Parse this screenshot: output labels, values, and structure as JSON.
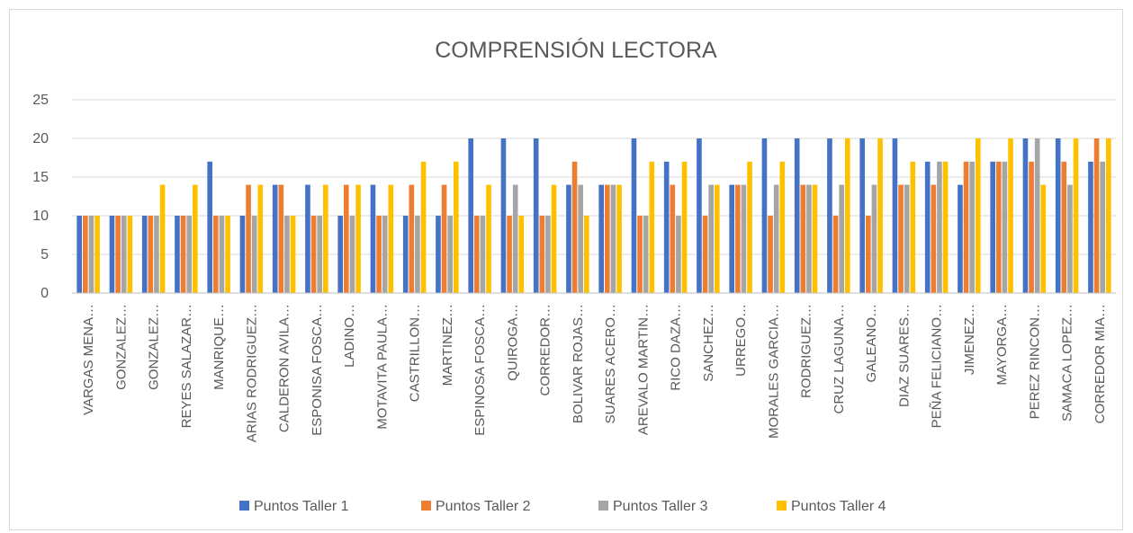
{
  "chart_data": {
    "type": "bar",
    "title": "COMPRENSIÓN LECTORA",
    "categories": [
      "VARGAS MENA…",
      "GONZALEZ…",
      "GONZALEZ…",
      "REYES SALAZAR…",
      "MANRIQUE…",
      "ARIAS RODRIGUEZ…",
      "CALDERON AVILA…",
      "ESPONISA FOSCA…",
      "LADINO…",
      "MOTAVITA PAULA…",
      "CASTRILLON…",
      "MARTINEZ…",
      "ESPINOSA FOSCA…",
      "QUIROGA…",
      "CORREDOR…",
      "BOLIVAR ROJAS…",
      "SUARES ACERO…",
      "AREVALO MARTIN…",
      "RICO DAZA…",
      "SANCHEZ…",
      "URREGO…",
      "MORALES GARCIA…",
      "RODRIGUEZ…",
      "CRUZ LAGUNA…",
      "GALEANO…",
      "DIAZ SUARES…",
      "PEÑA FELICIANO…",
      "JIMENEZ…",
      "MAYORGA…",
      "PEREZ RINCON…",
      "SAMACA LOPEZ…",
      "CORREDOR MIA…"
    ],
    "series": [
      {
        "name": "Puntos Taller 1",
        "color": "#4472c4",
        "values": [
          10,
          10,
          10,
          10,
          17,
          10,
          14,
          14,
          10,
          14,
          10,
          10,
          20,
          20,
          20,
          14,
          14,
          20,
          17,
          20,
          14,
          20,
          20,
          20,
          20,
          20,
          17,
          14,
          17,
          20,
          20,
          17
        ]
      },
      {
        "name": "Puntos Taller 2",
        "color": "#ed7d31",
        "values": [
          10,
          10,
          10,
          10,
          10,
          14,
          14,
          10,
          14,
          10,
          14,
          14,
          10,
          10,
          10,
          17,
          14,
          10,
          14,
          10,
          14,
          10,
          14,
          10,
          10,
          14,
          14,
          17,
          17,
          17,
          17,
          20
        ]
      },
      {
        "name": "Puntos Taller 3",
        "color": "#a5a5a5",
        "values": [
          10,
          10,
          10,
          10,
          10,
          10,
          10,
          10,
          10,
          10,
          10,
          10,
          10,
          14,
          10,
          14,
          14,
          10,
          10,
          14,
          14,
          14,
          14,
          14,
          14,
          14,
          17,
          17,
          17,
          20,
          14,
          17
        ]
      },
      {
        "name": "Puntos Taller 4",
        "color": "#ffc000",
        "values": [
          10,
          10,
          14,
          14,
          10,
          14,
          10,
          14,
          14,
          14,
          17,
          17,
          14,
          10,
          14,
          10,
          14,
          17,
          17,
          14,
          17,
          17,
          14,
          20,
          20,
          17,
          17,
          20,
          20,
          14,
          20,
          20
        ]
      }
    ],
    "ylim": [
      0,
      25
    ],
    "yticks": [
      0,
      5,
      10,
      15,
      20,
      25
    ],
    "grid": true,
    "legend": "bottom"
  }
}
